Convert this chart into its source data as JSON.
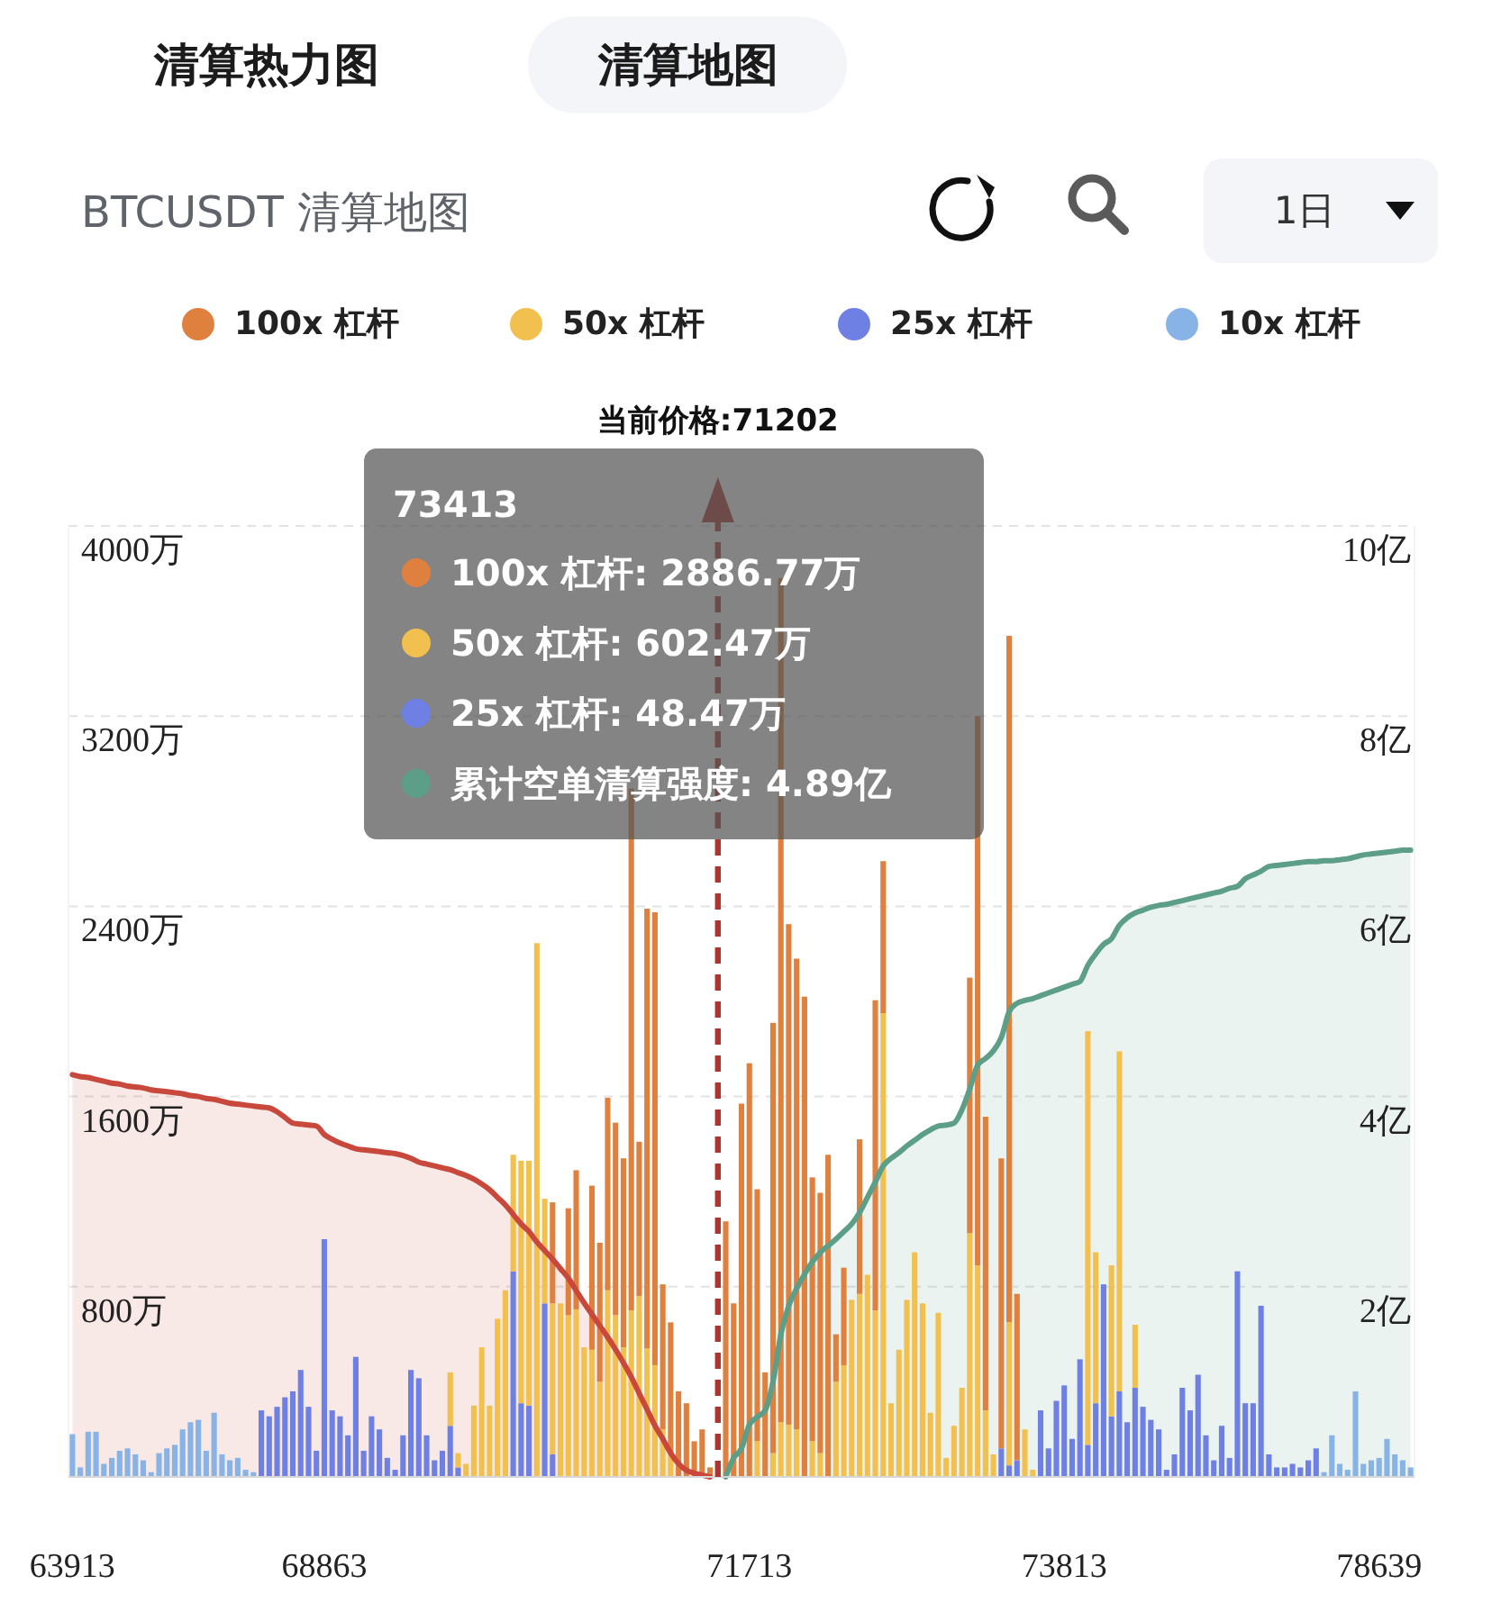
{
  "chart_data": {
    "type": "bar",
    "stacked": true,
    "title": "BTCUSDT 清算地图",
    "annotations": [
      "清算热力图",
      "清算地图",
      "1日",
      "当前价格:71202",
      "73413",
      "100x 杠杆: 2886.77万",
      "50x 杠杆: 602.47万",
      "25x 杠杆: 48.47万",
      "累计空单清算强度: 4.89亿"
    ],
    "categories": [
      "63913",
      null,
      null,
      null,
      null,
      null,
      null,
      null,
      null,
      null,
      null,
      null,
      null,
      null,
      null,
      null,
      null,
      null,
      null,
      null,
      null,
      null,
      null,
      null,
      null,
      null,
      null,
      null,
      null,
      null,
      null,
      null,
      "68863",
      null,
      null,
      null,
      null,
      null,
      null,
      null,
      null,
      null,
      null,
      null,
      null,
      null,
      null,
      null,
      null,
      null,
      null,
      null,
      null,
      null,
      null,
      null,
      null,
      null,
      null,
      null,
      null,
      null,
      null,
      null,
      null,
      null,
      null,
      null,
      null,
      null,
      null,
      null,
      null,
      null,
      null,
      null,
      null,
      null,
      null,
      null,
      null,
      null,
      null,
      null,
      null,
      null,
      "71713",
      null,
      null,
      null,
      null,
      null,
      null,
      null,
      null,
      null,
      null,
      null,
      null,
      null,
      null,
      null,
      null,
      null,
      null,
      null,
      null,
      null,
      null,
      null,
      null,
      null,
      null,
      null,
      null,
      null,
      null,
      null,
      null,
      null,
      null,
      null,
      null,
      null,
      null,
      null,
      "73813",
      null,
      null,
      null,
      null,
      null,
      null,
      null,
      null,
      null,
      null,
      null,
      null,
      null,
      null,
      null,
      null,
      null,
      null,
      null,
      null,
      null,
      null,
      null,
      null,
      null,
      null,
      null,
      null,
      null,
      null,
      null,
      null,
      null,
      null,
      null,
      null,
      null,
      null,
      null,
      "78639",
      null,
      null,
      null,
      null
    ],
    "series": [
      {
        "name": "10x 杠杆",
        "color": "#88b3e6",
        "values": [
          180,
          40,
          190,
          190,
          55,
          80,
          110,
          120,
          95,
          70,
          20,
          100,
          120,
          135,
          200,
          230,
          240,
          110,
          270,
          95,
          70,
          80,
          30,
          20,
          null,
          null,
          null,
          null,
          null,
          null,
          null,
          null,
          null,
          null,
          null,
          null,
          null,
          null,
          null,
          null,
          null,
          null,
          null,
          null,
          null,
          null,
          null,
          null,
          null,
          null,
          null,
          null,
          null,
          null,
          null,
          null,
          null,
          null,
          null,
          null,
          null,
          null,
          null,
          null,
          null,
          null,
          null,
          null,
          null,
          null,
          null,
          null,
          null,
          null,
          null,
          null,
          null,
          null,
          null,
          null,
          null,
          null,
          null,
          null,
          null,
          null,
          null,
          null,
          null,
          null,
          null,
          null,
          null,
          null,
          null,
          null,
          null,
          null,
          null,
          null,
          null,
          null,
          null,
          null,
          null,
          null,
          null,
          null,
          null,
          null,
          null,
          null,
          null,
          null,
          null,
          null,
          null,
          null,
          null,
          null,
          null,
          null,
          null,
          null,
          null,
          null,
          null,
          null,
          null,
          null,
          null,
          null,
          null,
          null,
          null,
          null,
          null,
          null,
          null,
          null,
          null,
          null,
          null,
          null,
          null,
          null,
          null,
          null,
          null,
          null,
          null,
          null,
          null,
          null,
          null,
          null,
          null,
          null,
          null,
          20,
          175,
          55,
          30,
          360,
          55,
          70,
          80,
          160,
          95,
          70,
          40
        ]
      },
      {
        "name": "25x 杠杆",
        "color": "#6f80e4",
        "values": [
          null,
          null,
          null,
          null,
          null,
          null,
          null,
          null,
          null,
          null,
          null,
          null,
          null,
          null,
          null,
          null,
          null,
          null,
          null,
          null,
          null,
          null,
          null,
          null,
          280,
          255,
          295,
          335,
          360,
          450,
          295,
          110,
          1000,
          280,
          255,
          175,
          505,
          110,
          255,
          200,
          80,
          30,
          175,
          450,
          415,
          175,
          70,
          110,
          215,
          40,
          null,
          null,
          null,
          null,
          null,
          null,
          865,
          310,
          300,
          null,
          730,
          95,
          null,
          null,
          null,
          null,
          null,
          null,
          null,
          null,
          null,
          null,
          null,
          null,
          null,
          null,
          null,
          null,
          null,
          null,
          null,
          null,
          null,
          null,
          null,
          null,
          null,
          null,
          null,
          null,
          null,
          null,
          null,
          null,
          null,
          null,
          null,
          null,
          null,
          null,
          null,
          null,
          null,
          null,
          null,
          null,
          null,
          null,
          null,
          null,
          null,
          null,
          null,
          null,
          null,
          null,
          null,
          null,
          120,
          48.47,
          70,
          null,
          null,
          280,
          120,
          320,
          385,
          160,
          495,
          135,
          310,
          810,
          255,
          360,
          230,
          375,
          295,
          240,
          200,
          30,
          95,
          375,
          280,
          430,
          175,
          70,
          215,
          80,
          865,
          310,
          310,
          720,
          95,
          40,
          40,
          55,
          40,
          70,
          120,
          null,
          null,
          null,
          null,
          null,
          null,
          null,
          null,
          null,
          null,
          null,
          null
        ]
      },
      {
        "name": "50x 杠杆",
        "color": "#f2c04e",
        "values": [
          null,
          null,
          null,
          null,
          null,
          null,
          null,
          null,
          null,
          null,
          null,
          null,
          null,
          null,
          null,
          null,
          null,
          null,
          null,
          null,
          null,
          null,
          null,
          null,
          null,
          null,
          null,
          null,
          null,
          null,
          null,
          null,
          null,
          null,
          null,
          null,
          null,
          null,
          null,
          null,
          null,
          null,
          null,
          null,
          null,
          null,
          null,
          null,
          225,
          60,
          55,
          300,
          545,
          300,
          665,
          785,
          490,
          1020,
          1030,
          2245,
          440,
          635,
          730,
          680,
          705,
          545,
          535,
          400,
          785,
          680,
          545,
          700,
          760,
          540,
          470,
          200,
          100,
          null,
          null,
          null,
          null,
          null,
          null,
          null,
          null,
          null,
          null,
          150,
          null,
          100,
          230,
          220,
          200,
          null,
          150,
          100,
          null,
          400,
          470,
          745,
          770,
          850,
          700,
          1950,
          310,
          535,
          745,
          945,
          730,
          270,
          690,
          80,
          215,
          375,
          1025,
          890,
          280,
          95,
          null,
          602.47,
          null,
          200,
          30,
          null,
          null,
          null,
          null,
          null,
          null,
          1740,
          635,
          null,
          635,
          1430,
          null,
          265,
          null,
          null,
          null,
          null,
          null,
          null,
          null,
          null,
          null,
          null,
          null,
          null,
          null,
          null,
          null,
          null,
          null,
          null,
          null,
          null,
          null,
          null,
          null,
          null,
          null,
          null,
          null,
          null,
          null,
          null,
          null,
          null,
          null,
          null,
          null
        ]
      },
      {
        "name": "100x 杠杆",
        "color": "#e0803e",
        "values": [
          null,
          null,
          null,
          null,
          null,
          null,
          null,
          null,
          null,
          null,
          null,
          null,
          null,
          null,
          null,
          null,
          null,
          null,
          null,
          null,
          null,
          null,
          null,
          null,
          null,
          null,
          null,
          null,
          null,
          null,
          null,
          null,
          null,
          null,
          null,
          null,
          null,
          null,
          null,
          null,
          null,
          null,
          null,
          null,
          null,
          null,
          null,
          null,
          null,
          null,
          null,
          null,
          null,
          null,
          null,
          null,
          null,
          null,
          null,
          null,
          null,
          425,
          null,
          450,
          585,
          null,
          690,
          585,
          810,
          810,
          795,
          2195,
          650,
          1850,
          1905,
          610,
          550,
          360,
          310,
          150,
          200,
          40,
          null,
          1075,
          730,
          1570,
          1740,
          1060,
          440,
          1810,
          3550,
          2105,
          1980,
          2020,
          1110,
          1095,
          1355,
          200,
          410,
          null,
          650,
          null,
          1305,
          640,
          null,
          null,
          null,
          null,
          null,
          null,
          null,
          null,
          null,
          null,
          1075,
          2310,
          1235,
          null,
          1220,
          2886.77,
          700,
          null,
          null,
          null,
          null,
          null,
          null,
          null,
          null,
          null,
          null,
          null,
          null,
          null,
          null,
          null,
          null,
          null,
          null,
          null,
          null,
          null,
          null,
          null,
          null,
          null,
          null,
          null,
          null,
          null,
          null,
          null,
          null,
          null,
          null,
          null,
          null,
          null,
          null,
          null,
          null,
          null,
          null,
          null,
          null,
          null,
          null,
          null,
          null,
          null,
          null
        ]
      },
      {
        "type": "area",
        "axis": "y2",
        "color": "#c9483c",
        "values": [
          4.23,
          4.21,
          4.2,
          4.18,
          4.16,
          4.14,
          4.13,
          4.11,
          4.1,
          4.09,
          4.07,
          4.06,
          4.05,
          4.04,
          4.03,
          4.01,
          4,
          3.98,
          3.97,
          3.95,
          3.93,
          3.92,
          3.91,
          3.9,
          3.89,
          3.88,
          3.84,
          3.78,
          3.72,
          3.71,
          3.7,
          3.69,
          3.6,
          3.55,
          3.51,
          3.48,
          3.45,
          3.44,
          3.43,
          3.42,
          3.41,
          3.4,
          3.38,
          3.35,
          3.31,
          3.29,
          3.27,
          3.25,
          3.23,
          3.2,
          3.17,
          3.13,
          3.08,
          3.02,
          2.94,
          2.86,
          2.76,
          2.66,
          2.58,
          2.47,
          2.38,
          2.29,
          2.19,
          2.09,
          1.96,
          1.83,
          1.71,
          1.59,
          1.47,
          1.34,
          1.2,
          1.05,
          0.88,
          0.71,
          0.54,
          0.4,
          0.25,
          0.14,
          0.07,
          0.04,
          0.02,
          0,
          null,
          null,
          null,
          null,
          null,
          null,
          null,
          null,
          null,
          null,
          null,
          null,
          null,
          null,
          null,
          null,
          null,
          null,
          null,
          null,
          null,
          null,
          null,
          null,
          null,
          null,
          null,
          null,
          null,
          null,
          null,
          null,
          null,
          null,
          null,
          null,
          null,
          null,
          null,
          null,
          null,
          null,
          null,
          null,
          null,
          null,
          null,
          null,
          null,
          null,
          null,
          null,
          null,
          null,
          null,
          null,
          null,
          null,
          null,
          null,
          null,
          null,
          null,
          null,
          null,
          null,
          null,
          null,
          null,
          null,
          null,
          null,
          null,
          null,
          null,
          null,
          null,
          null,
          null,
          null,
          null,
          null,
          null,
          null,
          null,
          null,
          null,
          null,
          null
        ]
      },
      {
        "type": "area",
        "axis": "y2",
        "color": "#5c9e88",
        "values": [
          null,
          null,
          null,
          null,
          null,
          null,
          null,
          null,
          null,
          null,
          null,
          null,
          null,
          null,
          null,
          null,
          null,
          null,
          null,
          null,
          null,
          null,
          null,
          null,
          null,
          null,
          null,
          null,
          null,
          null,
          null,
          null,
          null,
          null,
          null,
          null,
          null,
          null,
          null,
          null,
          null,
          null,
          null,
          null,
          null,
          null,
          null,
          null,
          null,
          null,
          null,
          null,
          null,
          null,
          null,
          null,
          null,
          null,
          null,
          null,
          null,
          null,
          null,
          null,
          null,
          null,
          null,
          null,
          null,
          null,
          null,
          null,
          null,
          null,
          null,
          null,
          null,
          null,
          null,
          null,
          null,
          null,
          null,
          0,
          0.2,
          0.3,
          0.55,
          0.63,
          0.7,
          1.0,
          1.5,
          1.8,
          1.98,
          2.13,
          2.26,
          2.36,
          2.43,
          2.5,
          2.58,
          2.66,
          2.78,
          2.94,
          3.1,
          3.27,
          3.35,
          3.41,
          3.48,
          3.54,
          3.6,
          3.65,
          3.69,
          3.7,
          3.72,
          3.86,
          4.08,
          4.33,
          4.4,
          4.48,
          4.62,
          4.89,
          4.98,
          5.01,
          5.03,
          5.06,
          5.09,
          5.12,
          5.15,
          5.18,
          5.21,
          5.38,
          5.5,
          5.6,
          5.66,
          5.8,
          5.88,
          5.93,
          5.96,
          5.99,
          6.01,
          6.02,
          6.04,
          6.06,
          6.08,
          6.1,
          6.12,
          6.14,
          6.16,
          6.19,
          6.21,
          6.29,
          6.33,
          6.37,
          6.42,
          6.43,
          6.44,
          6.45,
          6.46,
          6.47,
          6.47,
          6.48,
          6.48,
          6.49,
          6.5,
          6.52,
          6.54,
          6.55,
          6.56,
          6.57,
          6.58,
          6.59,
          6.59
        ]
      }
    ],
    "ylim": [
      0,
      4000
    ],
    "yticks": [
      {
        "value": 800,
        "label": "800万"
      },
      {
        "value": 1600,
        "label": "1600万"
      },
      {
        "value": 2400,
        "label": "2400万"
      },
      {
        "value": 3200,
        "label": "3200万"
      },
      {
        "value": 4000,
        "label": "4000万"
      }
    ],
    "y2lim": [
      0,
      10
    ],
    "y2ticks": [
      {
        "value": 2,
        "label": "2亿"
      },
      {
        "value": 4,
        "label": "4亿"
      },
      {
        "value": 6,
        "label": "6亿"
      },
      {
        "value": 8,
        "label": "8亿"
      },
      {
        "value": 10,
        "label": "10亿"
      }
    ],
    "grid": "y",
    "legend": "top"
  }
}
